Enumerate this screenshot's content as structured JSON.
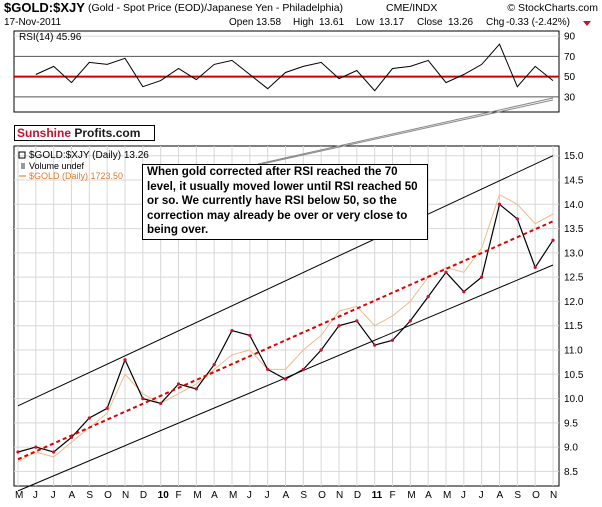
{
  "header": {
    "symbol": "$GOLD:$XJY",
    "description": "(Gold - Spot Price (EOD)/Japanese Yen - Philadelphia)",
    "exchange": "CME/INDX",
    "watermark": "© StockCharts.com",
    "date": "17-Nov-2011",
    "open_label": "Open",
    "open_value": "13.58",
    "high_label": "High",
    "high_value": "13.61",
    "low_label": "Low",
    "low_value": "13.17",
    "close_label": "Close",
    "close_value": "13.26",
    "chg_label": "Chg",
    "chg_value": "-0.33 (-2.42%)"
  },
  "logo": {
    "part1": "Sunshine",
    "part2": " Profits.com"
  },
  "annotation": "When gold corrected after RSI reached the 70 level, it usually moved lower until RSI reached 50 or so. We currently have RSI below 50, so the correction may already be over or very close to being over.",
  "colors": {
    "price_bar": "#000000",
    "price_bar_accent": "#c8102e",
    "gold_usd_line": "#f2b98a",
    "trend_red": "#e00000",
    "rsi_line": "#000000",
    "rsi_level_50": "#cc0000",
    "grid": "#d8d8d8",
    "channel": "#000000"
  },
  "chart_data": [
    {
      "type": "line",
      "title": "RSI(14) 45.96",
      "name": "RSI(14)",
      "last_value": 45.96,
      "ylim": [
        15,
        95
      ],
      "y_ticks": [
        "90",
        "70",
        "50",
        "30"
      ],
      "reference_lines": [
        70,
        50,
        30
      ],
      "x": [
        "2009-06",
        "2009-07",
        "2009-08",
        "2009-09",
        "2009-10",
        "2009-11",
        "2009-12",
        "2010-01",
        "2010-02",
        "2010-03",
        "2010-04",
        "2010-05",
        "2010-06",
        "2010-07",
        "2010-08",
        "2010-09",
        "2010-10",
        "2010-11",
        "2010-12",
        "2011-01",
        "2011-02",
        "2011-03",
        "2011-04",
        "2011-05",
        "2011-06",
        "2011-07",
        "2011-08",
        "2011-09",
        "2011-10",
        "2011-11"
      ],
      "values": [
        52,
        60,
        44,
        64,
        62,
        68,
        40,
        46,
        58,
        47,
        62,
        66,
        52,
        38,
        54,
        60,
        64,
        48,
        56,
        36,
        58,
        60,
        66,
        44,
        52,
        62,
        82,
        40,
        60,
        46
      ]
    },
    {
      "type": "line",
      "title": "$GOLD:$XJY (Daily) 13.26",
      "ylim": [
        8.2,
        15.2
      ],
      "y_ticks": [
        "15.0",
        "14.5",
        "14.0",
        "13.5",
        "13.0",
        "12.5",
        "12.0",
        "11.5",
        "11.0",
        "10.5",
        "10.0",
        "9.5",
        "9.0",
        "8.5"
      ],
      "x_ticks": [
        "M",
        "J",
        "J",
        "A",
        "S",
        "O",
        "N",
        "D",
        "10",
        "F",
        "M",
        "A",
        "M",
        "J",
        "J",
        "A",
        "S",
        "O",
        "N",
        "D",
        "11",
        "F",
        "M",
        "A",
        "M",
        "J",
        "J",
        "A",
        "S",
        "O",
        "N"
      ],
      "legend": [
        "$GOLD:$XJY (Daily) 13.26",
        "Volume undef",
        "$GOLD (Daily) 1723.50"
      ],
      "series": [
        {
          "name": "$GOLD:$XJY (Daily)",
          "last_value": 13.26,
          "x": [
            "2009-05",
            "2009-06",
            "2009-07",
            "2009-08",
            "2009-09",
            "2009-10",
            "2009-11",
            "2009-12",
            "2010-01",
            "2010-02",
            "2010-03",
            "2010-04",
            "2010-05",
            "2010-06",
            "2010-07",
            "2010-08",
            "2010-09",
            "2010-10",
            "2010-11",
            "2010-12",
            "2011-01",
            "2011-02",
            "2011-03",
            "2011-04",
            "2011-05",
            "2011-06",
            "2011-07",
            "2011-08",
            "2011-09",
            "2011-10",
            "2011-11"
          ],
          "values": [
            8.9,
            9.0,
            8.9,
            9.2,
            9.6,
            9.8,
            10.8,
            10.0,
            9.9,
            10.3,
            10.2,
            10.7,
            11.4,
            11.3,
            10.6,
            10.4,
            10.6,
            11.0,
            11.5,
            11.6,
            11.1,
            11.2,
            11.6,
            12.1,
            12.6,
            12.2,
            12.5,
            14.0,
            13.7,
            12.7,
            13.26
          ]
        },
        {
          "name": "$GOLD (Daily)",
          "last_value": 1723.5,
          "x": [
            "2009-05",
            "2009-06",
            "2009-07",
            "2009-08",
            "2009-09",
            "2009-10",
            "2009-11",
            "2009-12",
            "2010-01",
            "2010-02",
            "2010-03",
            "2010-04",
            "2010-05",
            "2010-06",
            "2010-07",
            "2010-08",
            "2010-09",
            "2010-10",
            "2010-11",
            "2010-12",
            "2011-01",
            "2011-02",
            "2011-03",
            "2011-04",
            "2011-05",
            "2011-06",
            "2011-07",
            "2011-08",
            "2011-09",
            "2011-10",
            "2011-11"
          ],
          "values": [
            8.7,
            8.9,
            8.8,
            9.1,
            9.4,
            9.7,
            10.5,
            10.1,
            9.9,
            10.1,
            10.3,
            10.6,
            10.9,
            11.0,
            10.6,
            10.6,
            11.0,
            11.3,
            11.8,
            11.9,
            11.5,
            11.7,
            12.0,
            12.5,
            12.7,
            12.6,
            13.1,
            14.2,
            14.0,
            13.6,
            13.8
          ]
        }
      ],
      "trend_line": {
        "start": [
          "2009-05",
          8.75
        ],
        "end": [
          "2011-11",
          13.65
        ]
      },
      "channel_upper": {
        "start": [
          "2009-05",
          9.85
        ],
        "end": [
          "2011-11",
          15.0
        ]
      },
      "channel_lower": {
        "start": [
          "2009-05",
          8.1
        ],
        "end": [
          "2011-11",
          12.75
        ]
      }
    }
  ]
}
